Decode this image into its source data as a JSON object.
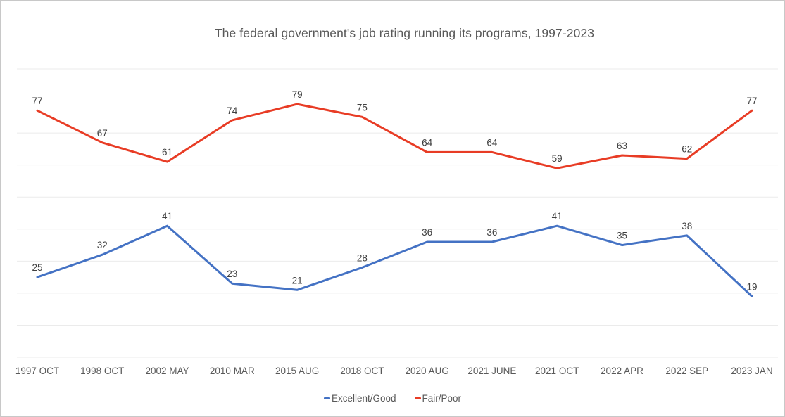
{
  "chart_data": {
    "type": "line",
    "title": "The federal government's job rating running its programs, 1997-2023",
    "categories": [
      "1997 OCT",
      "1998 OCT",
      "2002 MAY",
      "2010 MAR",
      "2015 AUG",
      "2018 OCT",
      "2020 AUG",
      "2021 JUNE",
      "2021 OCT",
      "2022 APR",
      "2022 SEP",
      "2023 JAN"
    ],
    "series": [
      {
        "name": "Excellent/Good",
        "color": "#4472C4",
        "values": [
          25,
          32,
          41,
          23,
          21,
          28,
          36,
          36,
          41,
          35,
          38,
          19
        ]
      },
      {
        "name": "Fair/Poor",
        "color": "#E83C25",
        "values": [
          77,
          67,
          61,
          74,
          79,
          75,
          64,
          64,
          59,
          63,
          62,
          77
        ]
      }
    ],
    "ylim": [
      0,
      90
    ],
    "gridline_step": 10,
    "grid": "on",
    "legend_position": "bottom",
    "data_labels": "above points",
    "style": {
      "grid_color": "#ebebeb",
      "axis_text_color": "#595959",
      "data_label_color": "#404040",
      "title_color": "#595959"
    }
  }
}
